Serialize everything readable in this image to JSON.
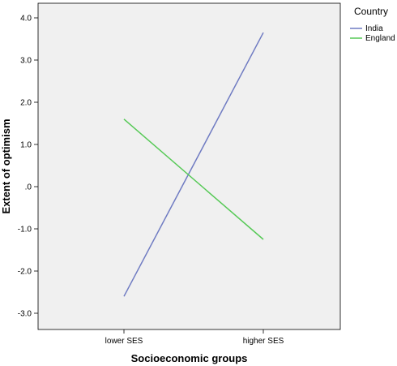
{
  "chart_data": {
    "type": "line",
    "title": "",
    "xlabel": "Socioeconomic groups",
    "ylabel": "Extent of optimism",
    "categories": [
      "lower SES",
      "higher SES"
    ],
    "ylim": [
      -3.4,
      4.2
    ],
    "yticks": [
      4.0,
      3.0,
      2.0,
      1.0,
      0.0,
      -1.0,
      -2.0,
      -3.0
    ],
    "ytick_labels": [
      "4.0",
      "3.0",
      "2.0",
      "1.0",
      ".0",
      "-1.0",
      "-2.0",
      "-3.0"
    ],
    "grid": false,
    "background_color": "#f0f0f0",
    "legend": {
      "title": "Country",
      "placement": "top-right, outside plot"
    },
    "series": [
      {
        "name": "India",
        "color": "#6f7bc2",
        "values": [
          -2.6,
          3.65
        ]
      },
      {
        "name": "England",
        "color": "#56c956",
        "values": [
          1.6,
          -1.25
        ]
      }
    ]
  }
}
